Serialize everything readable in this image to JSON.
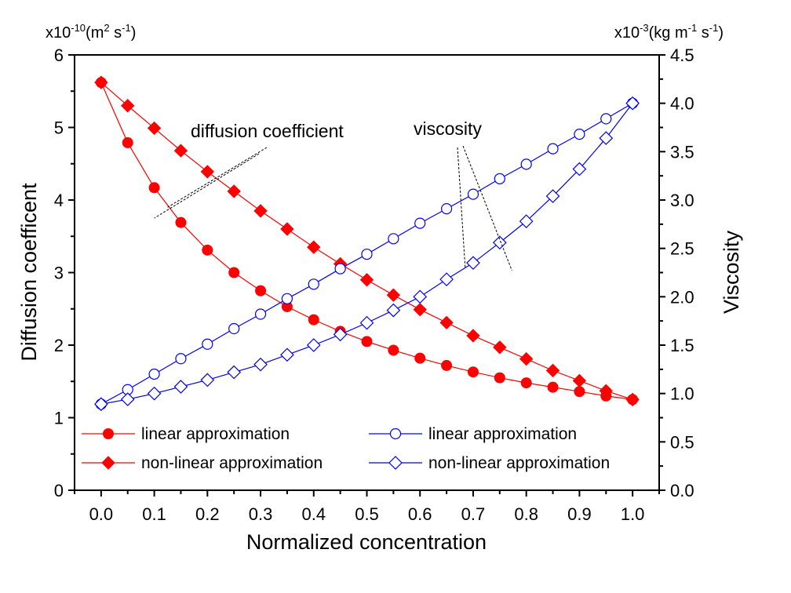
{
  "chart_data": {
    "type": "line",
    "x": [
      0.0,
      0.05,
      0.1,
      0.15,
      0.2,
      0.25,
      0.3,
      0.35,
      0.4,
      0.45,
      0.5,
      0.55,
      0.6,
      0.65,
      0.7,
      0.75,
      0.8,
      0.85,
      0.9,
      0.95,
      1.0
    ],
    "xlabel": "Normalized concentration",
    "xlim": [
      -0.05,
      1.05
    ],
    "xticks": [
      "0.0",
      "0.1",
      "0.2",
      "0.3",
      "0.4",
      "0.5",
      "0.6",
      "0.7",
      "0.8",
      "0.9",
      "1.0"
    ],
    "ylabel_left": "Diffusion coefficent",
    "ylim_left": [
      0,
      6
    ],
    "yticks_left": [
      "0",
      "1",
      "2",
      "3",
      "4",
      "5",
      "6"
    ],
    "unit_left": {
      "base": "x10",
      "exp": "-10",
      "open": "(m",
      "sq": "2",
      "mid": " s",
      "sup2": "-1",
      "close": ")"
    },
    "ylabel_right": "Viscosity",
    "ylim_right": [
      0,
      4.5
    ],
    "yticks_right": [
      "0.0",
      "0.5",
      "1.0",
      "1.5",
      "2.0",
      "2.5",
      "3.0",
      "3.5",
      "4.0",
      "4.5"
    ],
    "unit_right": {
      "base": "x10",
      "exp": "-3",
      "open": "(kg m",
      "sq": "-1",
      "mid": " s",
      "sup2": "-1",
      "close": ")"
    },
    "grid": false,
    "legend": "bottom",
    "series": [
      {
        "name": "linear approximation",
        "axis": "left",
        "marker": "filled-circle",
        "color": "#ff0000",
        "values": [
          5.62,
          4.79,
          4.17,
          3.69,
          3.31,
          3.0,
          2.75,
          2.53,
          2.35,
          2.19,
          2.05,
          1.93,
          1.82,
          1.72,
          1.63,
          1.55,
          1.48,
          1.42,
          1.36,
          1.3,
          1.25
        ]
      },
      {
        "name": "non-linear approximation",
        "axis": "left",
        "marker": "filled-diamond",
        "color": "#ff0000",
        "values": [
          5.62,
          5.3,
          4.99,
          4.68,
          4.39,
          4.12,
          3.85,
          3.6,
          3.35,
          3.12,
          2.9,
          2.69,
          2.49,
          2.31,
          2.13,
          1.97,
          1.81,
          1.65,
          1.51,
          1.37,
          1.25
        ]
      },
      {
        "name": "linear approximation",
        "axis": "right",
        "marker": "open-circle",
        "color": "#0000ff",
        "values": [
          0.89,
          1.04,
          1.2,
          1.36,
          1.51,
          1.67,
          1.82,
          1.98,
          2.13,
          2.29,
          2.44,
          2.6,
          2.76,
          2.91,
          3.06,
          3.22,
          3.37,
          3.53,
          3.68,
          3.84,
          4.0
        ]
      },
      {
        "name": "non-linear approximation",
        "axis": "right",
        "marker": "open-diamond",
        "color": "#0000ff",
        "values": [
          0.89,
          0.94,
          1.0,
          1.07,
          1.14,
          1.22,
          1.3,
          1.4,
          1.5,
          1.61,
          1.73,
          1.86,
          2.0,
          2.18,
          2.35,
          2.56,
          2.78,
          3.04,
          3.32,
          3.64,
          4.0
        ]
      }
    ],
    "annotations": [
      {
        "text": "diffusion coefficient",
        "pointers": [
          [
            0.125,
            3.9
          ],
          [
            0.1,
            3.75
          ]
        ]
      },
      {
        "text": "viscosity",
        "pointers": [
          [
            0.685,
            2.3
          ],
          [
            0.773,
            2.27
          ]
        ]
      }
    ]
  }
}
